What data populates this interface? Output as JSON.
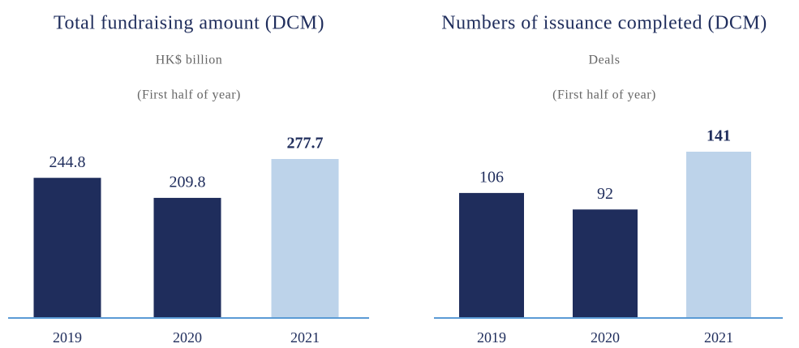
{
  "chart_data": [
    {
      "type": "bar",
      "title": "Total fundraising amount (DCM)",
      "subtitle": [
        "HK$ billion",
        "(First half of year)"
      ],
      "categories": [
        "2019",
        "2020",
        "2021"
      ],
      "values": [
        244.8,
        209.8,
        277.7
      ],
      "colors": [
        "#1f2d5c",
        "#1f2d5c",
        "#bdd3ea"
      ],
      "bold_labels": [
        false,
        false,
        true
      ],
      "baseline_color": "#5b9bd5"
    },
    {
      "type": "bar",
      "title": "Numbers of issuance completed (DCM)",
      "subtitle": [
        "Deals",
        "(First half of year)"
      ],
      "categories": [
        "2019",
        "2020",
        "2021"
      ],
      "values": [
        106,
        92,
        141
      ],
      "colors": [
        "#1f2d5c",
        "#1f2d5c",
        "#bdd3ea"
      ],
      "bold_labels": [
        false,
        false,
        true
      ],
      "baseline_color": "#5b9bd5"
    }
  ]
}
